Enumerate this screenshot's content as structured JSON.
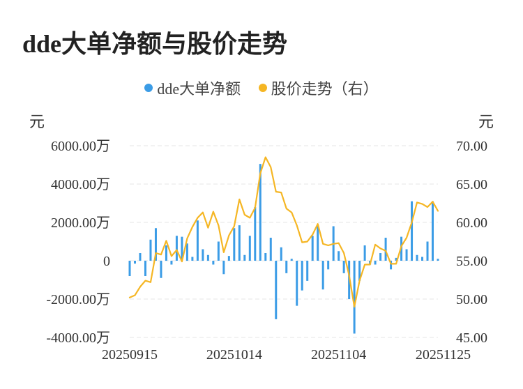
{
  "title": "dde大单净额与股价走势",
  "legend": {
    "bar_label": "dde大单净额",
    "line_label": "股价走势（右）"
  },
  "units": {
    "left": "元",
    "right": "元"
  },
  "colors": {
    "bar": "#3b9ce6",
    "line": "#f5b624",
    "grid": "#e6e6e6"
  },
  "chart_data": {
    "type": "bar+line",
    "left_axis": {
      "ylim": [
        -4000,
        6000
      ],
      "ticks": [
        6000,
        4000,
        2000,
        0,
        -2000,
        -4000
      ],
      "tick_labels": [
        "6000.00万",
        "4000.00万",
        "2000.00万",
        "0",
        "-2000.00万",
        "-4000.00万"
      ]
    },
    "right_axis": {
      "ylim": [
        45,
        70
      ],
      "ticks": [
        70,
        65,
        60,
        55,
        50,
        45
      ],
      "tick_labels": [
        "70.00",
        "65.00",
        "60.00",
        "55.00",
        "50.00",
        "45.00"
      ]
    },
    "x_tick_labels": [
      {
        "index": 0,
        "label": "20250915"
      },
      {
        "index": 20,
        "label": "20251014"
      },
      {
        "index": 40,
        "label": "20251104"
      },
      {
        "index": 60,
        "label": "20251125"
      }
    ],
    "grid": true,
    "series": [
      {
        "name": "dde大单净额",
        "type": "bar",
        "axis": "left",
        "values": [
          -800,
          -150,
          400,
          -800,
          1100,
          1700,
          -900,
          800,
          -200,
          1300,
          1250,
          900,
          200,
          2100,
          600,
          300,
          -200,
          1000,
          -700,
          250,
          1700,
          1850,
          300,
          1300,
          2800,
          5050,
          400,
          1200,
          -3050,
          700,
          -650,
          100,
          -2350,
          -1550,
          -1050,
          1300,
          1800,
          -1500,
          -450,
          1800,
          500,
          -650,
          -2000,
          -3800,
          -1050,
          800,
          -200,
          -200,
          400,
          1200,
          -450,
          150,
          1250,
          600,
          3100,
          300,
          200,
          1000,
          3100,
          100
        ]
      },
      {
        "name": "股价走势（右）",
        "type": "line",
        "axis": "right",
        "values": [
          50.2,
          50.5,
          51.6,
          52.4,
          52.2,
          56.0,
          55.8,
          57.6,
          55.6,
          56.4,
          54.9,
          57.9,
          59.4,
          60.6,
          61.3,
          59.3,
          61.4,
          59.6,
          56.1,
          58.3,
          59.5,
          63.0,
          61.0,
          60.6,
          61.9,
          66.4,
          68.5,
          67.2,
          64.0,
          63.9,
          61.8,
          61.3,
          59.6,
          57.4,
          57.5,
          58.4,
          59.8,
          57.2,
          57.0,
          57.2,
          57.3,
          56.0,
          53.1,
          49.0,
          52.4,
          54.5,
          54.5,
          57.1,
          56.6,
          56.3,
          54.6,
          54.6,
          56.9,
          58.0,
          60.0,
          62.6,
          62.4,
          62.0,
          62.7,
          61.5
        ]
      }
    ]
  }
}
